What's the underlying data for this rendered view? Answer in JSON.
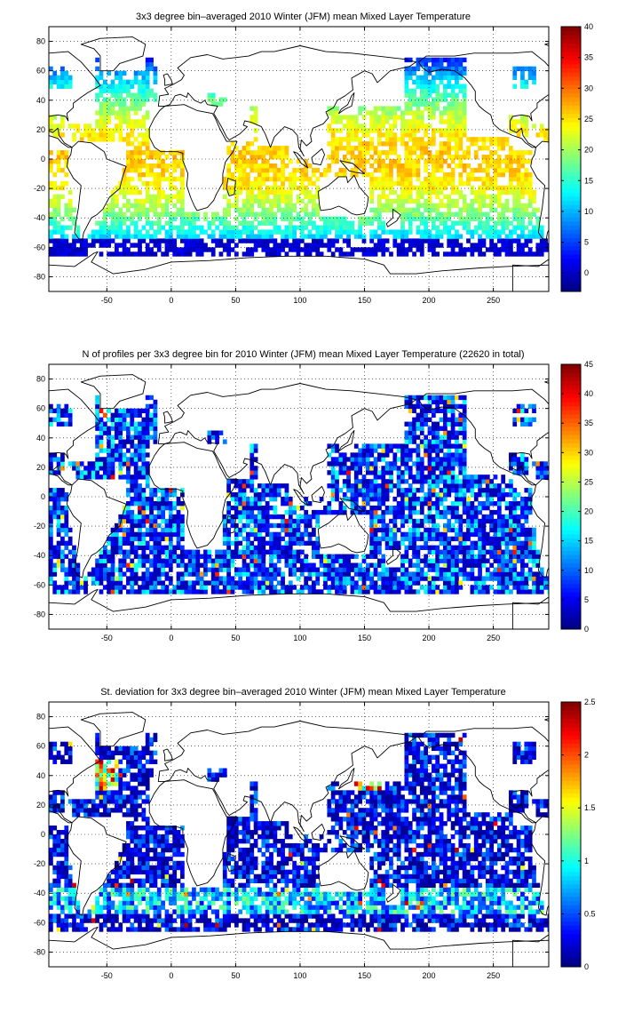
{
  "chart_data": [
    {
      "type": "heatmap",
      "title": "3x3 degree bin–averaged 2010 Winter (JFM) mean Mixed Layer Temperature",
      "xlabel": "",
      "ylabel": "",
      "xlim": [
        -95,
        293
      ],
      "ylim": [
        -90,
        90
      ],
      "xticks": [
        -50,
        0,
        50,
        100,
        150,
        200,
        250
      ],
      "yticks": [
        -80,
        -60,
        -40,
        -20,
        0,
        20,
        40,
        60,
        80
      ],
      "colorbar": {
        "min": -3,
        "max": 40,
        "ticks": [
          0,
          5,
          10,
          15,
          20,
          25,
          30,
          35,
          40
        ],
        "colormap": "jet"
      },
      "grid": true,
      "bin_size_deg": 3,
      "field": "temperature",
      "range": [
        -2,
        30
      ]
    },
    {
      "type": "heatmap",
      "title": "N of profiles per 3x3 degree bin for 2010 Winter (JFM) mean Mixed Layer Temperature  (22620 in total)",
      "xlabel": "",
      "ylabel": "",
      "xlim": [
        -95,
        293
      ],
      "ylim": [
        -90,
        90
      ],
      "xticks": [
        -50,
        0,
        50,
        100,
        150,
        200,
        250
      ],
      "yticks": [
        -80,
        -60,
        -40,
        -20,
        0,
        20,
        40,
        60,
        80
      ],
      "colorbar": {
        "min": 0,
        "max": 45,
        "ticks": [
          0,
          5,
          10,
          15,
          20,
          25,
          30,
          35,
          40,
          45
        ],
        "colormap": "jet"
      },
      "grid": true,
      "bin_size_deg": 3,
      "field": "count",
      "total_profiles": 22620,
      "range": [
        0,
        45
      ]
    },
    {
      "type": "heatmap",
      "title": "St. deviation for 3x3 degree bin–averaged 2010 Winter (JFM) mean Mixed Layer Temperature",
      "xlabel": "",
      "ylabel": "",
      "xlim": [
        -95,
        293
      ],
      "ylim": [
        -90,
        90
      ],
      "xticks": [
        -50,
        0,
        50,
        100,
        150,
        200,
        250
      ],
      "yticks": [
        -80,
        -60,
        -40,
        -20,
        0,
        20,
        40,
        60,
        80
      ],
      "colorbar": {
        "min": 0,
        "max": 2.5,
        "ticks": [
          0,
          0.5,
          1,
          1.5,
          2,
          2.5
        ],
        "colormap": "jet"
      },
      "grid": true,
      "bin_size_deg": 3,
      "field": "stdev",
      "range": [
        0,
        2.5
      ]
    }
  ]
}
